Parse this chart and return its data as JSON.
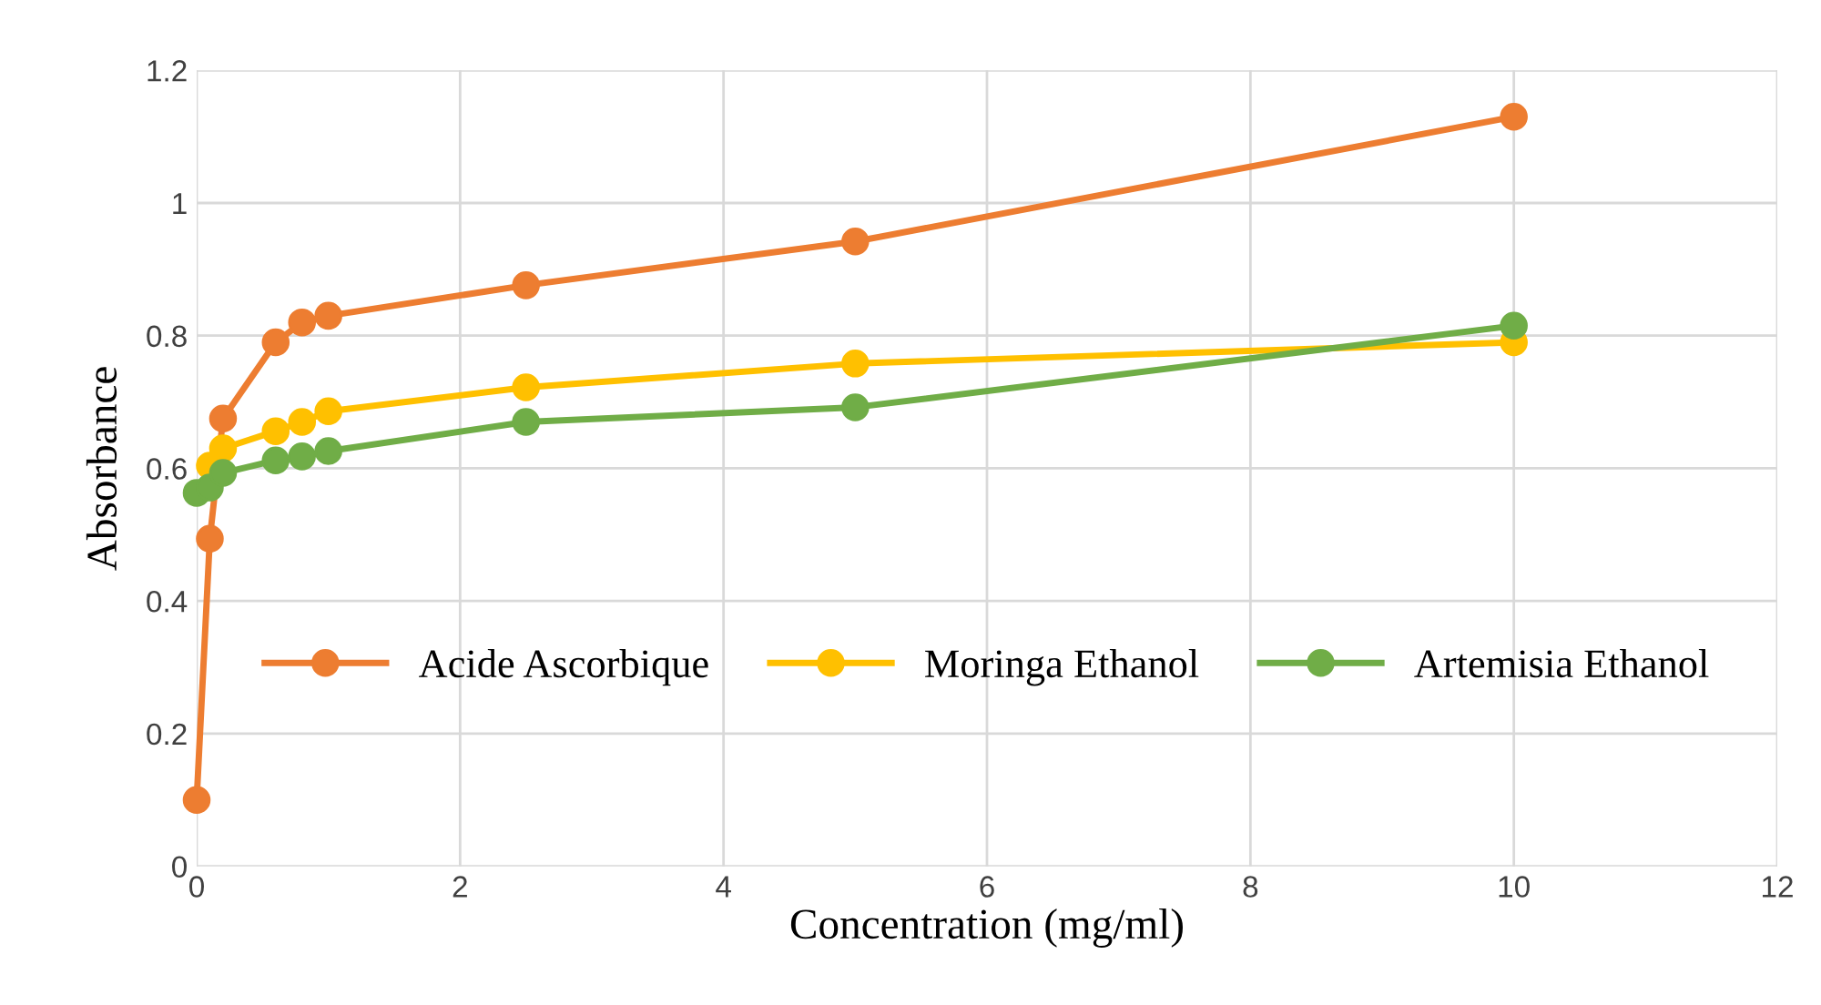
{
  "chart_data": {
    "type": "line",
    "xlabel": "Concentration (mg/ml)",
    "ylabel": "Absorbance",
    "xlim": [
      0,
      12
    ],
    "xticks": [
      0,
      2,
      4,
      6,
      8,
      10,
      12
    ],
    "ylim": [
      0,
      1.2
    ],
    "yticks": [
      0,
      0.2,
      0.4,
      0.6,
      0.8,
      1,
      1.2
    ],
    "grid": true,
    "legend": "center",
    "marker": "circle",
    "line_style": "solid",
    "series": [
      {
        "name": "Acide Ascorbique",
        "color": "#ed7d31",
        "x": [
          0,
          0.1,
          0.2,
          0.6,
          0.8,
          1,
          2.5,
          5,
          10
        ],
        "values": [
          0.1,
          0.494,
          0.675,
          0.79,
          0.82,
          0.83,
          0.876,
          0.942,
          1.13
        ]
      },
      {
        "name": "Moringa Ethanol",
        "color": "#ffc000",
        "x": [
          0.1,
          0.2,
          0.6,
          0.8,
          1,
          2.5,
          5,
          10
        ],
        "values": [
          0.604,
          0.63,
          0.656,
          0.67,
          0.686,
          0.722,
          0.758,
          0.79
        ]
      },
      {
        "name": "Artemisia Ethanol",
        "color": "#70ad47",
        "x": [
          0,
          0.1,
          0.2,
          0.6,
          0.8,
          1,
          2.5,
          5,
          10
        ],
        "values": [
          0.563,
          0.571,
          0.593,
          0.612,
          0.618,
          0.626,
          0.67,
          0.692,
          0.815
        ]
      }
    ]
  }
}
